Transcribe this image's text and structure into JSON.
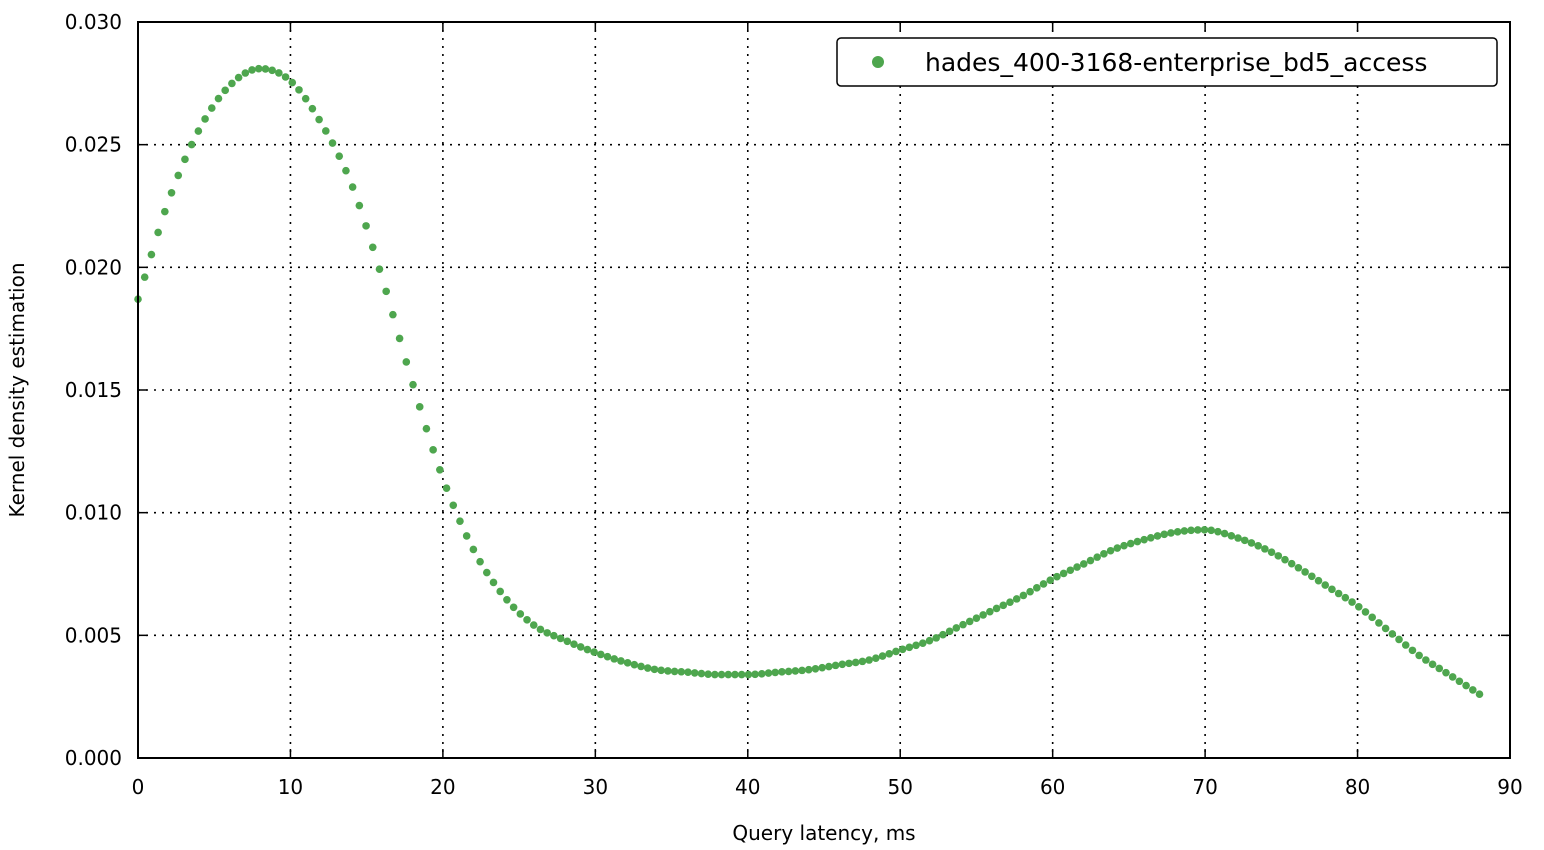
{
  "chart_data": {
    "type": "scatter",
    "title": "",
    "xlabel": "Query latency, ms",
    "ylabel": "Kernel density estimation",
    "xlim": [
      0,
      90
    ],
    "ylim": [
      0,
      0.03
    ],
    "grid": true,
    "legend_position": "top-right",
    "x_ticks": [
      "0",
      "10",
      "20",
      "30",
      "40",
      "50",
      "60",
      "70",
      "80",
      "90"
    ],
    "y_ticks": [
      "0.000",
      "0.005",
      "0.010",
      "0.015",
      "0.020",
      "0.025",
      "0.030"
    ],
    "series": [
      {
        "name": "hades_400-3168-enterprise_bd5_access",
        "color": "#4ea64e",
        "x": [
          0,
          2,
          4,
          6,
          8,
          10,
          12,
          14,
          16,
          18,
          20,
          22,
          24,
          26,
          28,
          30,
          32,
          34,
          36,
          38,
          40,
          42,
          44,
          46,
          48,
          50,
          52,
          54,
          56,
          58,
          60,
          62,
          64,
          66,
          68,
          70,
          72,
          74,
          76,
          78,
          80,
          82,
          84,
          86,
          88
        ],
        "y": [
          0.0187,
          0.0227,
          0.0256,
          0.0274,
          0.0281,
          0.0276,
          0.0259,
          0.0234,
          0.0196,
          0.0153,
          0.0114,
          0.0085,
          0.0066,
          0.0054,
          0.0048,
          0.0043,
          0.0039,
          0.0036,
          0.0035,
          0.0034,
          0.0034,
          0.0035,
          0.0036,
          0.0038,
          0.004,
          0.0044,
          0.0048,
          0.0054,
          0.006,
          0.0066,
          0.0073,
          0.0079,
          0.0085,
          0.0089,
          0.0092,
          0.0093,
          0.009,
          0.0085,
          0.0078,
          0.007,
          0.0062,
          0.0052,
          0.0042,
          0.0034,
          0.0026
        ]
      }
    ]
  }
}
